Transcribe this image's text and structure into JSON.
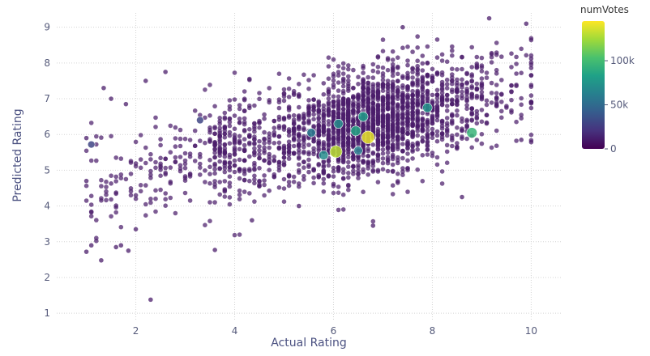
{
  "chart_data": {
    "type": "scatter",
    "xlabel": "Actual Rating",
    "ylabel": "Predicted Rating",
    "xlim": [
      0.4,
      10.6
    ],
    "ylim": [
      0.8,
      9.4
    ],
    "xticks": [
      2,
      4,
      6,
      8,
      10
    ],
    "yticks": [
      1,
      2,
      3,
      4,
      5,
      6,
      7,
      8,
      9
    ],
    "grid": "dotted",
    "colorbar": {
      "title": "numVotes",
      "range": [
        0,
        145000
      ],
      "ticks": [
        0,
        50000,
        100000
      ],
      "tick_labels": [
        "0",
        "50k",
        "100k"
      ],
      "colorscale": [
        "#440154",
        "#46327e",
        "#365c8d",
        "#277f8e",
        "#1fa187",
        "#4ac16d",
        "#a0da39",
        "#fde725"
      ]
    },
    "marker_color_base": "#4b1d6b",
    "highlighted_points": [
      {
        "x": 1.1,
        "y": 5.72,
        "votes": 30000
      },
      {
        "x": 3.3,
        "y": 6.4,
        "votes": 30000
      },
      {
        "x": 6.05,
        "y": 5.52,
        "votes": 130000
      },
      {
        "x": 6.7,
        "y": 5.92,
        "votes": 140000
      },
      {
        "x": 5.8,
        "y": 5.42,
        "votes": 70000
      },
      {
        "x": 6.6,
        "y": 6.5,
        "votes": 80000
      },
      {
        "x": 6.45,
        "y": 6.1,
        "votes": 85000
      },
      {
        "x": 7.9,
        "y": 6.75,
        "votes": 75000
      },
      {
        "x": 8.8,
        "y": 6.05,
        "votes": 95000
      },
      {
        "x": 5.55,
        "y": 6.05,
        "votes": 60000
      },
      {
        "x": 6.1,
        "y": 6.3,
        "votes": 70000
      },
      {
        "x": 6.5,
        "y": 5.55,
        "votes": 60000
      }
    ],
    "outlier_points": [
      {
        "x": 1.0,
        "y": 2.72
      },
      {
        "x": 1.1,
        "y": 2.9
      },
      {
        "x": 1.3,
        "y": 2.48
      },
      {
        "x": 1.6,
        "y": 2.85
      },
      {
        "x": 1.7,
        "y": 2.9
      },
      {
        "x": 1.85,
        "y": 2.75
      },
      {
        "x": 2.3,
        "y": 1.38
      },
      {
        "x": 3.6,
        "y": 2.77
      },
      {
        "x": 2.0,
        "y": 3.35
      },
      {
        "x": 1.0,
        "y": 4.7
      },
      {
        "x": 1.0,
        "y": 5.9
      },
      {
        "x": 1.35,
        "y": 7.3
      },
      {
        "x": 1.5,
        "y": 7.0
      },
      {
        "x": 2.6,
        "y": 7.75
      },
      {
        "x": 4.35,
        "y": 3.6
      },
      {
        "x": 6.8,
        "y": 3.45
      },
      {
        "x": 9.9,
        "y": 9.1
      },
      {
        "x": 9.15,
        "y": 9.25
      },
      {
        "x": 7.4,
        "y": 9.0
      },
      {
        "x": 5.3,
        "y": 4.0
      },
      {
        "x": 8.6,
        "y": 4.25
      },
      {
        "x": 9.8,
        "y": 5.85
      },
      {
        "x": 2.2,
        "y": 7.5
      },
      {
        "x": 1.8,
        "y": 6.85
      }
    ],
    "cloud_point_count": 2400,
    "cloud_trend": {
      "intercept": 4.35,
      "slope": 0.3
    }
  }
}
